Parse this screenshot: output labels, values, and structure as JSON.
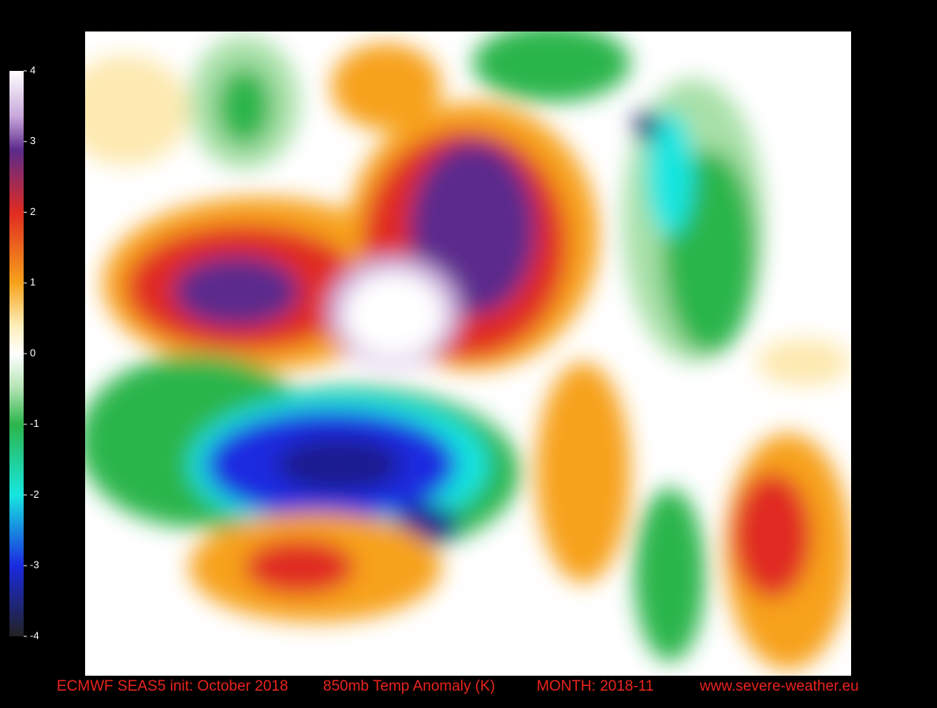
{
  "colorbar": {
    "ticks": [
      4,
      3,
      2,
      1,
      0,
      -1,
      -2,
      -3,
      -4
    ],
    "range": [
      -4,
      4
    ]
  },
  "footer": {
    "init": "ECMWF SEAS5 init: October 2018",
    "variable": "850mb Temp Anomaly (K)",
    "month": "MONTH: 2018-11",
    "website": "www.severe-weather.eu"
  }
}
